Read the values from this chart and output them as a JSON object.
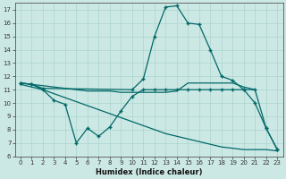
{
  "bg_color": "#cce8e4",
  "grid_color": "#aad4ce",
  "line_color": "#006868",
  "xlabel": "Humidex (Indice chaleur)",
  "xlim": [
    -0.5,
    23.5
  ],
  "ylim": [
    6,
    17.5
  ],
  "xticks": [
    0,
    1,
    2,
    3,
    4,
    5,
    6,
    7,
    8,
    9,
    10,
    11,
    12,
    13,
    14,
    15,
    16,
    17,
    18,
    19,
    20,
    21,
    22,
    23
  ],
  "yticks": [
    6,
    7,
    8,
    9,
    10,
    11,
    12,
    13,
    14,
    15,
    16,
    17
  ],
  "line_peak": {
    "x": [
      0,
      1,
      2,
      10,
      11,
      12,
      13,
      14,
      15,
      16,
      17,
      18,
      19,
      20,
      21,
      22,
      23
    ],
    "y": [
      11.5,
      11.4,
      11.1,
      11.0,
      11.8,
      15.0,
      17.2,
      17.3,
      16.0,
      15.9,
      14.0,
      12.0,
      11.7,
      11.0,
      10.0,
      8.1,
      6.5
    ]
  },
  "line_flat": {
    "x": [
      0,
      1,
      2,
      3,
      4,
      5,
      6,
      7,
      8,
      9,
      10,
      11,
      12,
      13,
      14,
      15,
      16,
      17,
      18,
      19,
      20,
      21
    ],
    "y": [
      11.5,
      11.4,
      11.3,
      11.2,
      11.1,
      11.0,
      10.9,
      10.9,
      10.9,
      10.8,
      10.8,
      10.8,
      10.8,
      10.8,
      10.9,
      11.5,
      11.5,
      11.5,
      11.5,
      11.5,
      11.2,
      11.0
    ]
  },
  "line_wavy": {
    "x": [
      0,
      1,
      2,
      3,
      4,
      5,
      6,
      7,
      8,
      9,
      10,
      11,
      12,
      13,
      14,
      15,
      16,
      17,
      18,
      19,
      20,
      21,
      22,
      23
    ],
    "y": [
      11.5,
      11.4,
      11.0,
      10.2,
      9.9,
      7.0,
      8.1,
      7.5,
      8.2,
      9.4,
      10.5,
      11.0,
      11.0,
      11.0,
      11.0,
      11.0,
      11.0,
      11.0,
      11.0,
      11.0,
      11.0,
      11.0,
      8.1,
      6.5
    ]
  },
  "line_decline": {
    "x": [
      0,
      1,
      2,
      3,
      4,
      5,
      6,
      7,
      8,
      9,
      10,
      11,
      12,
      13,
      14,
      15,
      16,
      17,
      18,
      19,
      20,
      21,
      22,
      23
    ],
    "y": [
      11.4,
      11.2,
      11.0,
      10.7,
      10.4,
      10.1,
      9.8,
      9.5,
      9.2,
      8.9,
      8.6,
      8.3,
      8.0,
      7.7,
      7.5,
      7.3,
      7.1,
      6.9,
      6.7,
      6.6,
      6.5,
      6.5,
      6.5,
      6.4
    ]
  }
}
